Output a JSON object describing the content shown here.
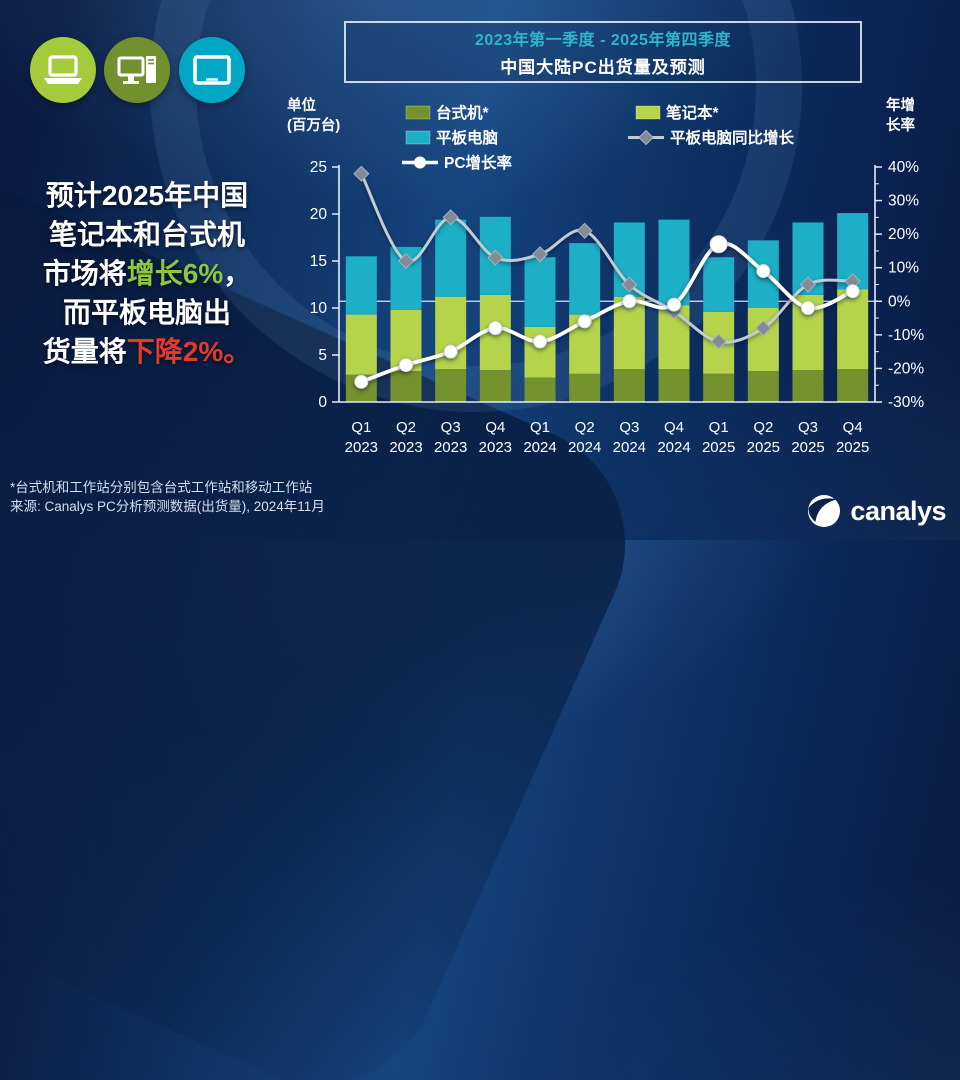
{
  "page": {
    "title_box": {
      "date_range": "2023年第一季度 - 2025年第四季度",
      "title": "中国大陆PC出货量及预测",
      "range_color": "#2fb4c8"
    },
    "headline": {
      "segments": [
        {
          "text": "预计2025年中国",
          "color": "#ffffff",
          "break_after": true
        },
        {
          "text": "笔记本和台式机",
          "color": "#ffffff",
          "break_after": true
        },
        {
          "text": "市场将",
          "color": "#ffffff"
        },
        {
          "text": "增长6%",
          "color": "#8dc63f"
        },
        {
          "text": "，",
          "color": "#ffffff",
          "break_after": true
        },
        {
          "text": "而平板电脑出",
          "color": "#ffffff",
          "break_after": true
        },
        {
          "text": "货量将",
          "color": "#ffffff"
        },
        {
          "text": "下降2%",
          "color": "#e6392a"
        },
        {
          "text": "。",
          "color": "#e6392a"
        }
      ]
    },
    "icons": [
      {
        "name": "laptop-icon",
        "bg": "#a3cb3b"
      },
      {
        "name": "desktop-pc-icon",
        "bg": "#71902e"
      },
      {
        "name": "tablet-icon",
        "bg": "#00a8c6"
      }
    ],
    "footnotes": [
      "*台式机和工作站分别包含台式工作站和移动工作站",
      "来源: Canalys PC分析预测数据(出货量), 2024年11月"
    ],
    "logo_text": "canalys"
  },
  "chart_data": {
    "type": "bar",
    "subtype": "stacked-bar-with-lines",
    "title": "中国大陆PC出货量及预测",
    "period": "2023年第一季度 - 2025年第四季度",
    "categories": [
      "Q1 2023",
      "Q2 2023",
      "Q3 2023",
      "Q4 2023",
      "Q1 2024",
      "Q2 2024",
      "Q3 2024",
      "Q4 2024",
      "Q1 2025",
      "Q2 2025",
      "Q3 2025",
      "Q4 2025"
    ],
    "x_labels": [
      [
        "Q1",
        "2023"
      ],
      [
        "Q2",
        "2023"
      ],
      [
        "Q3",
        "2023"
      ],
      [
        "Q4",
        "2023"
      ],
      [
        "Q1",
        "2024"
      ],
      [
        "Q2",
        "2024"
      ],
      [
        "Q3",
        "2024"
      ],
      [
        "Q4",
        "2024"
      ],
      [
        "Q1",
        "2025"
      ],
      [
        "Q2",
        "2025"
      ],
      [
        "Q3",
        "2025"
      ],
      [
        "Q4",
        "2025"
      ]
    ],
    "bar_series": [
      {
        "name": "台式机*",
        "color": "#74922e",
        "values": [
          2.9,
          3.3,
          3.5,
          3.4,
          2.6,
          3.0,
          3.5,
          3.5,
          3.0,
          3.3,
          3.4,
          3.5
        ]
      },
      {
        "name": "笔记本*",
        "color": "#b5d44b",
        "values": [
          6.4,
          6.5,
          7.7,
          8.0,
          5.4,
          6.3,
          7.7,
          6.8,
          6.6,
          6.7,
          8.0,
          8.5
        ]
      },
      {
        "name": "平板电脑",
        "color": "#1cafc6",
        "values": [
          6.2,
          6.7,
          8.2,
          8.3,
          7.4,
          7.6,
          7.9,
          9.1,
          5.8,
          7.2,
          7.7,
          8.1
        ]
      }
    ],
    "line_series": [
      {
        "name": "平板电脑同比增长",
        "color": "#c2cad4",
        "marker": "diamond",
        "marker_fill": "#838b97",
        "axis": "right",
        "values_pct": [
          38,
          12,
          25,
          13,
          14,
          21,
          5,
          -3,
          -12,
          -8,
          5,
          6
        ]
      },
      {
        "name": "PC增长率",
        "color": "#ffffff",
        "marker": "circle",
        "marker_fill": "#ffffff",
        "axis": "right",
        "values_pct": [
          -24,
          -19,
          -15,
          -8,
          -12,
          -6,
          0,
          -1,
          17,
          9,
          -2,
          3
        ]
      }
    ],
    "left_axis": {
      "label_lines": [
        "单位",
        "(百万台)"
      ],
      "min": 0,
      "max": 25,
      "ticks": [
        0,
        5,
        10,
        15,
        20,
        25
      ]
    },
    "right_axis": {
      "label_lines": [
        "年增",
        "长率"
      ],
      "min": -30,
      "max": 40,
      "ticks": [
        40,
        30,
        20,
        10,
        0,
        -10,
        -20,
        -30
      ],
      "tick_labels": [
        "40%",
        "30%",
        "20%",
        "10%",
        "0%",
        "-10%",
        "-20%",
        "-30%"
      ]
    },
    "gridline_at_pct": 0,
    "legend_position": "top"
  }
}
